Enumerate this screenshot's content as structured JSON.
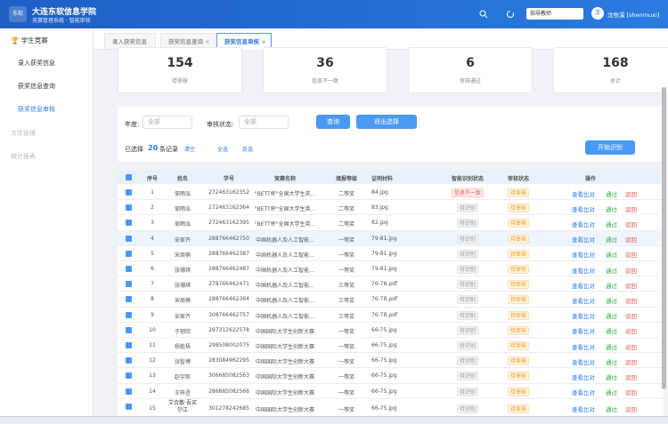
{
  "header": {
    "logo": "东软",
    "title": "大连东软信息学院",
    "subtitle": "竞赛管理系统 · 智能审核",
    "role": "指导教师",
    "avatar": "沈",
    "user": "沈牧溪 [shenmuxi]"
  },
  "sidebar": {
    "group": "学生竞赛",
    "items": [
      "录入获奖信息",
      "获奖信息查询",
      "获奖信息审核"
    ],
    "active": 2,
    "disabled": [
      "文件管理",
      "统计报表"
    ]
  },
  "tabs": {
    "items": [
      "录入获奖信息",
      "获奖信息查询",
      "获奖信息审核"
    ],
    "active": 2
  },
  "stats": [
    {
      "value": 154,
      "label": "待审核"
    },
    {
      "value": 36,
      "label": "信息不一致"
    },
    {
      "value": 6,
      "label": "审核通过"
    },
    {
      "value": 168,
      "label": "总计"
    }
  ],
  "filter": {
    "year_label": "年度:",
    "year_value": "全部",
    "status_label": "审核状态:",
    "status_value": "全部",
    "search": "查询",
    "exit": "退出选择",
    "selected_prefix": "已选择",
    "selected_count": 20,
    "selected_suffix": "条记录",
    "clear": "清空",
    "select_all": "全选",
    "invert": "反选",
    "start": "开始识别"
  },
  "table": {
    "headers": [
      "序号",
      "姓名",
      "学号",
      "竞赛名称",
      "填报等级",
      "证明材料",
      "智能识别状态",
      "审核状态",
      "操作"
    ],
    "actions": [
      "查看比对",
      "通过",
      "驳回"
    ],
    "rows": [
      [
        1,
        "邹雨泓",
        "272463162352",
        "\"BETT杯\"全国大学生英...",
        "二等奖",
        "84.jpg",
        "信息不一致",
        "待审核"
      ],
      [
        2,
        "邹雨泓",
        "272463162364",
        "\"BETT杯\"全国大学生英...",
        "二等奖",
        "83.jpg",
        "待识别",
        "待审核"
      ],
      [
        3,
        "邹雨泓",
        "272463162395",
        "\"BETT杯\"全国大学生英...",
        "二等奖",
        "82.jpg",
        "待识别",
        "待审核"
      ],
      [
        4,
        "安家齐",
        "288766462750",
        "中国机器人及人工智能...",
        "一等奖",
        "79-81.jpg",
        "待识别",
        "待审核"
      ],
      [
        5,
        "宋周楠",
        "288766462387",
        "中国机器人及人工智能...",
        "一等奖",
        "79-81.jpg",
        "待识别",
        "待审核"
      ],
      [
        6,
        "张珊琪",
        "288766462487",
        "中国机器人及人工智能...",
        "一等奖",
        "79-81.jpg",
        "待识别",
        "待审核"
      ],
      [
        7,
        "张珊琪",
        "278766462471",
        "中国机器人及人工智能...",
        "三等奖",
        "76-78.pdf",
        "待识别",
        "待审核"
      ],
      [
        8,
        "宋周楠",
        "288766462364",
        "中国机器人及人工智能...",
        "三等奖",
        "76-78.pdf",
        "待识别",
        "待审核"
      ],
      [
        9,
        "安家齐",
        "308766462757",
        "中国机器人及人工智能...",
        "三等奖",
        "76-78.pdf",
        "待识别",
        "待审核"
      ],
      [
        10,
        "于韧欣",
        "297312622578",
        "中国国际大学生创新大赛",
        "一等奖",
        "66-75.jpg",
        "待识别",
        "待审核"
      ],
      [
        11,
        "杨乾梧",
        "298508002075",
        "中国国际大学生创新大赛",
        "一等奖",
        "66-75.jpg",
        "待识别",
        "待审核"
      ],
      [
        12,
        "张智博",
        "283084962295",
        "中国国际大学生创新大赛",
        "一等奖",
        "66-75.jpg",
        "待识别",
        "待审核"
      ],
      [
        13,
        "赵宇航",
        "306685082563",
        "中国国际大学生创新大赛",
        "一等奖",
        "66-75.jpg",
        "待识别",
        "待审核"
      ],
      [
        14,
        "王梓丞",
        "286885082566",
        "中国国际大学生创新大赛",
        "一等奖",
        "66-75.jpg",
        "待识别",
        "待审核"
      ],
      [
        15,
        "艾合散·吾买尔江",
        "301278242685",
        "中国国际大学生创新大赛",
        "一等奖",
        "66-75.jpg",
        "待识别",
        "待审核"
      ]
    ]
  }
}
